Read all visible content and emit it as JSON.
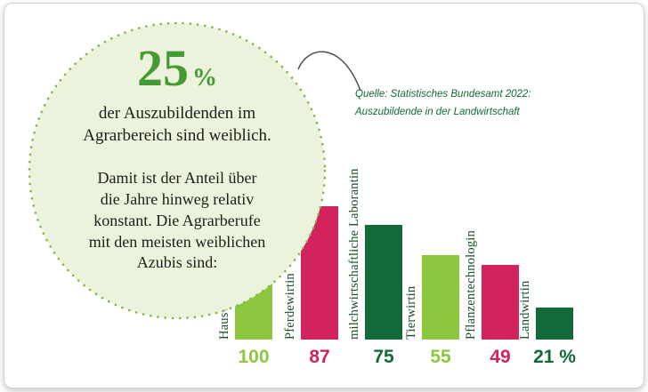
{
  "card": {
    "circle": {
      "value": "25",
      "unit": "%",
      "subtitle": "der Auszubildenden im Agrarbereich sind weiblich.",
      "body": "Damit ist der Anteil über die Jahre hinweg relativ konstant. Die Agrarberufe mit den meisten weiblichen Azubis sind:"
    },
    "source": {
      "line1": "Quelle: Statistisches Bundesamt 2022:",
      "line2": "Auszubildende in der Landwirtschaft"
    }
  },
  "chart_data": {
    "type": "bar",
    "title": "",
    "xlabel": "",
    "ylabel": "",
    "ylim": [
      0,
      100
    ],
    "grid": false,
    "legend": "none",
    "categories": [
      "Hauswirtschafterin",
      "Pferdewirtin",
      "milchwirtschaftliche Laborantin",
      "Tierwirtin",
      "Pflanzentechnologin",
      "Landwirtin"
    ],
    "values": [
      100,
      87,
      75,
      55,
      49,
      21
    ],
    "value_labels": [
      "100",
      "87",
      "75",
      "55",
      "49",
      "21 %"
    ],
    "bar_colors": [
      "#8dc63f",
      "#d2235c",
      "#116a38",
      "#8dc63f",
      "#d2235c",
      "#116a38"
    ],
    "category_label_color": "#1a4f2a"
  },
  "colors": {
    "light_green": "#8dc63f",
    "pink": "#d2235c",
    "dark_green": "#116a38",
    "stat_green": "#459a33",
    "circle_fill": "#ecf3dc",
    "circle_dots": "#7cb93e",
    "text_dark": "#1d1d1b",
    "source_green": "#116a38",
    "arc_stroke": "#4a4a4a"
  }
}
